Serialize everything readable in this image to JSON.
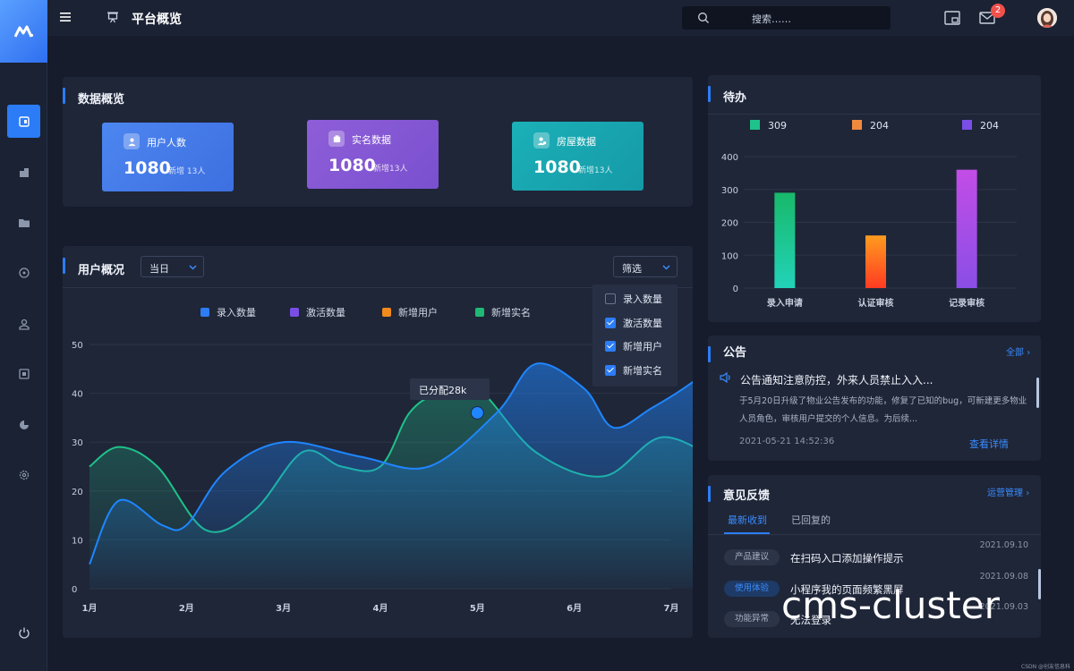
{
  "header": {
    "title": "平台概览",
    "search_placeholder": "搜索……",
    "mail_badge": "2"
  },
  "sidebar": {
    "items": [
      "dashboard",
      "building",
      "folder",
      "target",
      "user",
      "calendar",
      "pie",
      "settings"
    ],
    "active_index": 0
  },
  "overview": {
    "title": "数据概览",
    "cards": [
      {
        "label": "用户人数",
        "value": "1080",
        "sub": "新增 13人",
        "color_from": "#4d86f0",
        "color_to": "#3d6fe0"
      },
      {
        "label": "实名数据",
        "value": "1080",
        "sub": "新增13人",
        "color_from": "#8e5ed8",
        "color_to": "#7a50cf"
      },
      {
        "label": "房屋数据",
        "value": "1080",
        "sub": "新增13人",
        "color_from": "#1bb0b8",
        "color_to": "#159aa7"
      }
    ]
  },
  "user_chart": {
    "title": "用户概况",
    "period": "当日",
    "filter": "筛选",
    "filter_options": [
      {
        "label": "录入数量",
        "checked": false
      },
      {
        "label": "激活数量",
        "checked": true
      },
      {
        "label": "新增用户",
        "checked": true
      },
      {
        "label": "新增实名",
        "checked": true
      }
    ],
    "tooltip": "已分配28k"
  },
  "chart_data": [
    {
      "type": "line",
      "title": "用户概况",
      "x": [
        "1月",
        "2月",
        "3月",
        "4月",
        "5月",
        "6月",
        "7月"
      ],
      "ylim": [
        0,
        50
      ],
      "yticks": [
        0,
        10,
        20,
        30,
        40,
        50
      ],
      "legend": [
        {
          "name": "录入数量",
          "color": "#2c7df6"
        },
        {
          "name": "激活数量",
          "color": "#7a4ee6"
        },
        {
          "name": "新增用户",
          "color": "#f28a1e"
        },
        {
          "name": "新增实名",
          "color": "#1fb874"
        }
      ],
      "series": [
        {
          "name": "blue-series",
          "color": "#1f86ff",
          "x": [
            0,
            0.3,
            0.75,
            1,
            1.4,
            2,
            2.8,
            3.5,
            4.2,
            4.6,
            5.1,
            5.4,
            5.8,
            6.2,
            6.5
          ],
          "values": [
            5,
            18,
            13,
            13,
            24,
            30,
            27,
            25,
            36,
            46,
            41,
            33,
            37,
            42,
            47
          ]
        },
        {
          "name": "green-series",
          "color": "#1fc28a",
          "x": [
            0,
            0.3,
            0.7,
            1.2,
            1.7,
            2.2,
            2.6,
            3.0,
            3.3,
            3.6,
            4.0,
            4.6,
            5.3,
            5.9,
            6.5
          ],
          "values": [
            25,
            29,
            25,
            12,
            16,
            28,
            25,
            25,
            36,
            40,
            41,
            28,
            23,
            31,
            26
          ]
        }
      ],
      "highlight": {
        "x": 4.0,
        "y": 36
      }
    },
    {
      "type": "bar",
      "title": "待办",
      "categories": [
        "录入申请",
        "认证审核",
        "记录审核"
      ],
      "values": [
        290,
        160,
        360
      ],
      "ylim": [
        0,
        400
      ],
      "yticks": [
        0,
        100,
        200,
        300,
        400
      ],
      "legend": [
        {
          "name": "309",
          "color": "#1fc28a"
        },
        {
          "name": "204",
          "color": "#f28a3e"
        },
        {
          "name": "204",
          "color": "#7a4ee6"
        }
      ],
      "colors": [
        [
          "#22d3b8",
          "#18b86a"
        ],
        [
          "#ff3b22",
          "#ff9b1e"
        ],
        [
          "#8a4ee6",
          "#c24de6"
        ]
      ]
    }
  ],
  "todo": {
    "title": "待办"
  },
  "notice": {
    "title": "公告",
    "more": "全部",
    "headline": "公告通知注意防控，外来人员禁止入入...",
    "body": "于5月20日升级了物业公告发布的功能，修复了已知的bug，可新建更多物业人员角色，审核用户提交的个人信息。为后续...",
    "time": "2021-05-21  14:52:36",
    "detail": "查看详情"
  },
  "feedback": {
    "title": "意见反馈",
    "manage": "运营管理",
    "tabs": [
      "最新收到",
      "已回复的"
    ],
    "rows": [
      {
        "tag": "产品建议",
        "text": "在扫码入口添加操作提示",
        "date": "2021.09.10",
        "tag_bg": "#2c3548",
        "tag_color": "#aab4c6"
      },
      {
        "tag": "使用体验",
        "text": "小程序我的页面频繁黑屏",
        "date": "2021.09.08",
        "tag_bg": "#1e3a66",
        "tag_color": "#3a8cff"
      },
      {
        "tag": "功能异常",
        "text": "无法登录",
        "date": "2021.09.03",
        "tag_bg": "#2c3548",
        "tag_color": "#aab4c6"
      }
    ]
  },
  "overlay": "cms-cluster",
  "credit": "CSDN @创友信息科技"
}
